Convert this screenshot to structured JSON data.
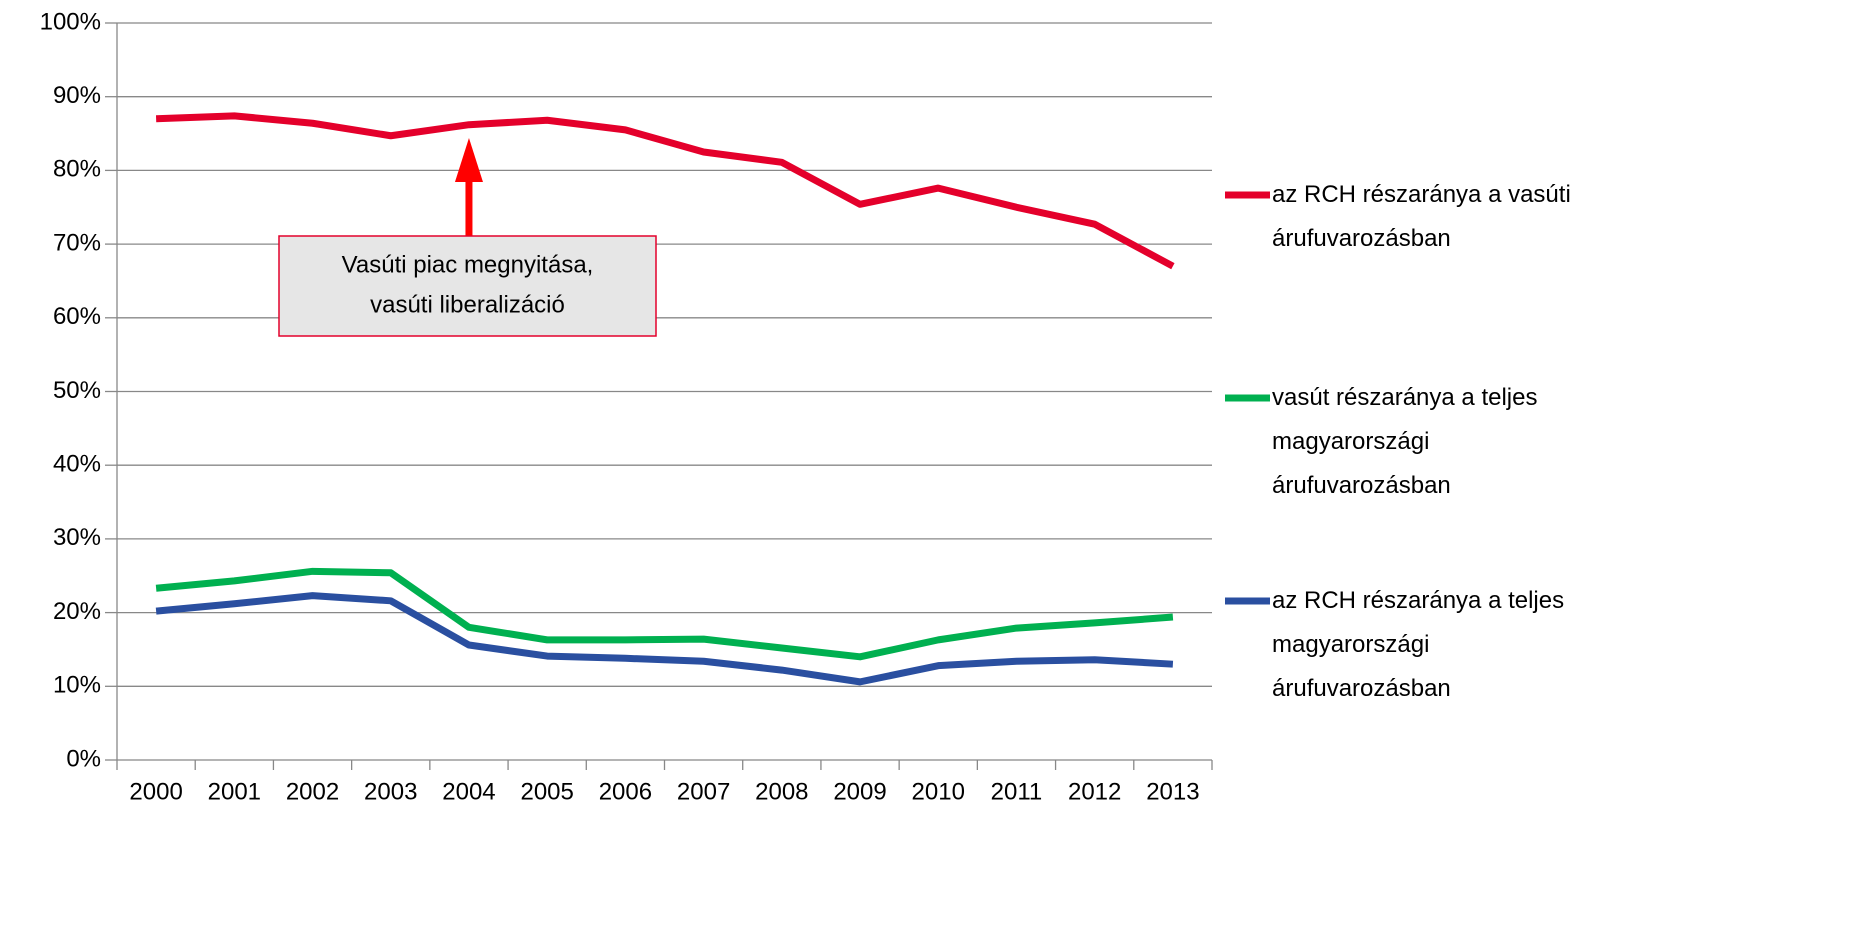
{
  "chart_data": {
    "type": "line",
    "categories": [
      "2000",
      "2001",
      "2002",
      "2003",
      "2004",
      "2005",
      "2006",
      "2007",
      "2008",
      "2009",
      "2010",
      "2011",
      "2012",
      "2013"
    ],
    "series": [
      {
        "name": "az RCH részaránya a vasúti árufuvarozásban",
        "color": "#e4002b",
        "values": [
          87.0,
          87.4,
          86.4,
          84.7,
          86.2,
          86.8,
          85.5,
          82.5,
          81.1,
          75.4,
          77.6,
          75.0,
          72.7,
          67.0
        ]
      },
      {
        "name": "vasút részaránya a teljes magyarországi árufuvarozásban",
        "color": "#00b050",
        "values": [
          23.3,
          24.3,
          25.6,
          25.4,
          18.0,
          16.3,
          16.3,
          16.4,
          15.2,
          14.0,
          16.3,
          17.9,
          18.6,
          19.4
        ]
      },
      {
        "name": "az RCH részaránya a teljes magyarországi árufuvarozásban",
        "color": "#2a4fa0",
        "values": [
          20.2,
          21.2,
          22.3,
          21.6,
          15.6,
          14.1,
          13.8,
          13.4,
          12.2,
          10.6,
          12.8,
          13.4,
          13.6,
          13.0
        ]
      }
    ],
    "ylim": [
      0,
      100
    ],
    "yticks": [
      {
        "value": 0,
        "label": "0%"
      },
      {
        "value": 10,
        "label": "10%"
      },
      {
        "value": 20,
        "label": "20%"
      },
      {
        "value": 30,
        "label": "30%"
      },
      {
        "value": 40,
        "label": "40%"
      },
      {
        "value": 50,
        "label": "50%"
      },
      {
        "value": 60,
        "label": "60%"
      },
      {
        "value": 70,
        "label": "70%"
      },
      {
        "value": 80,
        "label": "80%"
      },
      {
        "value": 90,
        "label": "90%"
      },
      {
        "value": 100,
        "label": "100%"
      }
    ],
    "grid": true,
    "legend": "right",
    "annotation": [
      "Vasúti piac megnyitása,",
      "vasúti liberalizáció"
    ]
  }
}
